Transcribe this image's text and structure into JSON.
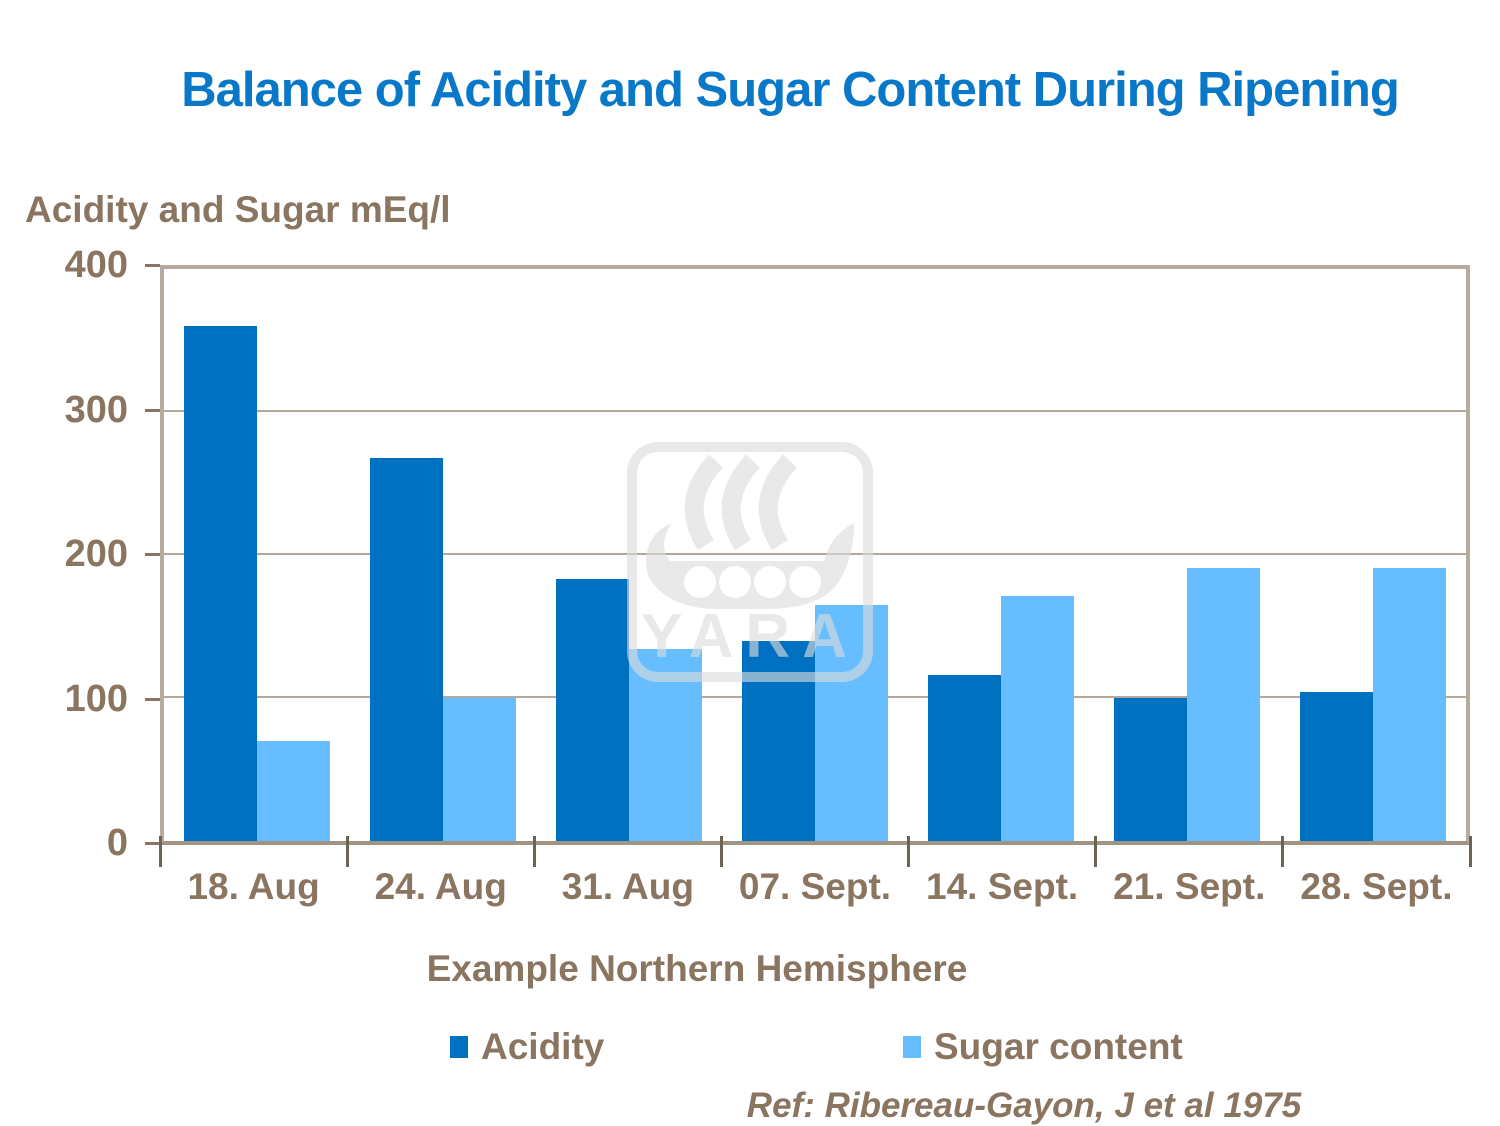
{
  "title": "Balance of Acidity and Sugar Content During Ripening",
  "y_axis_title": "Acidity and Sugar mEq/l",
  "x_axis_title": "Example Northern Hemisphere",
  "reference": "Ref: Ribereau-Gayon, J et al 1975",
  "watermark_text": "YARA",
  "colors": {
    "title_blue": "#0A78C8",
    "label_brown": "#8A7560",
    "gridline": "#B3A89B",
    "plot_border": "#B4AA9E",
    "tick_dark": "#6F6354",
    "acidity_blue": "#0070C0",
    "sugar_blue": "#66BDFF",
    "watermark_gray": "#DCDCDC"
  },
  "chart_data": {
    "type": "bar",
    "title": "Balance of Acidity and Sugar Content During Ripening",
    "categories": [
      "18. Aug",
      "24. Aug",
      "31. Aug",
      "07. Sept.",
      "14. Sept.",
      "21. Sept.",
      "28. Sept."
    ],
    "series": [
      {
        "name": "Acidity",
        "color": "#0070C0",
        "values": [
          360,
          268,
          183,
          140,
          116,
          100,
          104
        ]
      },
      {
        "name": "Sugar content",
        "color": "#66BDFF",
        "values": [
          70,
          100,
          134,
          165,
          171,
          191,
          191
        ]
      }
    ],
    "xlabel": "Example Northern Hemisphere",
    "ylabel": "Acidity and Sugar mEq/l",
    "ylim": [
      0,
      400
    ],
    "yticks": [
      0,
      100,
      200,
      300,
      400
    ],
    "grid": true,
    "legend_position": "bottom"
  },
  "legend": [
    {
      "label": "Acidity",
      "color": "#0070C0"
    },
    {
      "label": "Sugar content",
      "color": "#66BDFF"
    }
  ]
}
